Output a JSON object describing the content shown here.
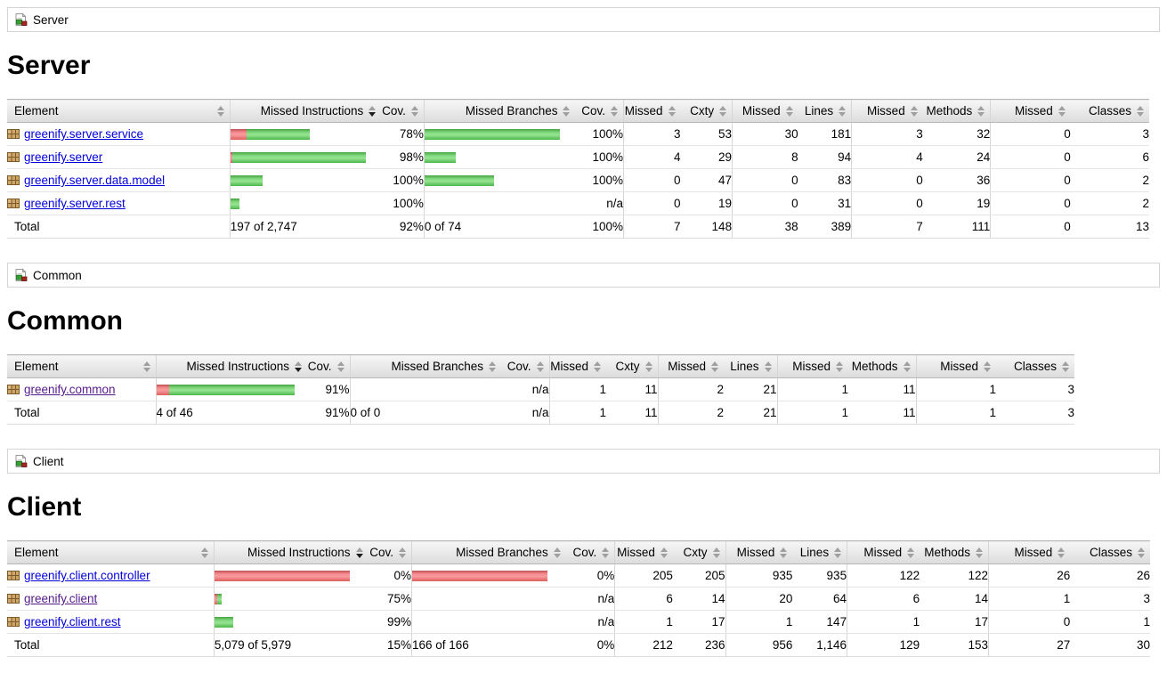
{
  "colors": {
    "bar_green": "#4db74a",
    "bar_red": "#dd5e5c",
    "link": "#0000dd",
    "link_visited": "#551a8b",
    "header_bg": "#e3e3e3"
  },
  "icons": {
    "breadcrumb_icon": "coverage-report-icon",
    "package_icon": "package-icon",
    "sort_icon": "sort-arrows-icon"
  },
  "columns": [
    {
      "key": "element",
      "label": "Element",
      "sorted": false
    },
    {
      "key": "missed-instructions",
      "label": "Missed Instructions",
      "sorted": true
    },
    {
      "key": "instruction-coverage",
      "label": "Cov.",
      "sorted": false
    },
    {
      "key": "missed-branches",
      "label": "Missed Branches",
      "sorted": false
    },
    {
      "key": "branch-coverage",
      "label": "Cov.",
      "sorted": false
    },
    {
      "key": "missed-cxty",
      "label": "Missed",
      "sorted": false
    },
    {
      "key": "cxty",
      "label": "Cxty",
      "sorted": false
    },
    {
      "key": "missed-lines",
      "label": "Missed",
      "sorted": false
    },
    {
      "key": "lines",
      "label": "Lines",
      "sorted": false
    },
    {
      "key": "missed-methods",
      "label": "Missed",
      "sorted": false
    },
    {
      "key": "methods",
      "label": "Methods",
      "sorted": false
    },
    {
      "key": "missed-classes",
      "label": "Missed",
      "sorted": false
    },
    {
      "key": "classes",
      "label": "Classes",
      "sorted": false
    }
  ],
  "sections": [
    {
      "breadcrumb": "Server",
      "title": "Server",
      "rows": [
        {
          "name": "greenify.server.service",
          "visited": false,
          "ibar": {
            "red": 18,
            "green": 71
          },
          "icov": "78%",
          "bbar": {
            "red": 0,
            "green": 152
          },
          "bcov": "100%",
          "vals": [
            "3",
            "53",
            "30",
            "181",
            "3",
            "32",
            "0",
            "3"
          ]
        },
        {
          "name": "greenify.server",
          "visited": false,
          "ibar": {
            "red": 2,
            "green": 150
          },
          "icov": "98%",
          "bbar": {
            "red": 0,
            "green": 35
          },
          "bcov": "100%",
          "vals": [
            "4",
            "29",
            "8",
            "94",
            "4",
            "24",
            "0",
            "6"
          ]
        },
        {
          "name": "greenify.server.data.model",
          "visited": false,
          "ibar": {
            "red": 0,
            "green": 36
          },
          "icov": "100%",
          "bbar": {
            "red": 0,
            "green": 78
          },
          "bcov": "100%",
          "vals": [
            "0",
            "47",
            "0",
            "83",
            "0",
            "36",
            "0",
            "2"
          ]
        },
        {
          "name": "greenify.server.rest",
          "visited": false,
          "ibar": {
            "red": 0,
            "green": 10
          },
          "icov": "100%",
          "bbar": null,
          "bcov": "n/a",
          "vals": [
            "0",
            "19",
            "0",
            "31",
            "0",
            "19",
            "0",
            "2"
          ]
        }
      ],
      "total": {
        "label": "Total",
        "instr": "197 of 2,747",
        "icov": "92%",
        "branch": "0 of 74",
        "bcov": "100%",
        "vals": [
          "7",
          "148",
          "38",
          "389",
          "7",
          "111",
          "0",
          "13"
        ]
      }
    },
    {
      "breadcrumb": "Common",
      "title": "Common",
      "rows": [
        {
          "name": "greenify.common",
          "visited": true,
          "ibar": {
            "red": 14,
            "green": 141
          },
          "icov": "91%",
          "bbar": null,
          "bcov": "n/a",
          "vals": [
            "1",
            "11",
            "2",
            "21",
            "1",
            "11",
            "1",
            "3"
          ]
        }
      ],
      "total": {
        "label": "Total",
        "instr": "4 of 46",
        "icov": "91%",
        "branch": "0 of 0",
        "bcov": "n/a",
        "vals": [
          "1",
          "11",
          "2",
          "21",
          "1",
          "11",
          "1",
          "3"
        ]
      }
    },
    {
      "breadcrumb": "Client",
      "title": "Client",
      "rows": [
        {
          "name": "greenify.client.controller",
          "visited": false,
          "ibar": {
            "red": 152,
            "green": 0
          },
          "icov": "0%",
          "bbar": {
            "red": 152,
            "green": 0
          },
          "bcov": "0%",
          "vals": [
            "205",
            "205",
            "935",
            "935",
            "122",
            "122",
            "26",
            "26"
          ]
        },
        {
          "name": "greenify.client",
          "visited": true,
          "ibar": {
            "red": 3,
            "green": 5
          },
          "icov": "75%",
          "bbar": null,
          "bcov": "n/a",
          "vals": [
            "6",
            "14",
            "20",
            "64",
            "6",
            "14",
            "1",
            "3"
          ]
        },
        {
          "name": "greenify.client.rest",
          "visited": false,
          "ibar": {
            "red": 0,
            "green": 21
          },
          "icov": "99%",
          "bbar": null,
          "bcov": "n/a",
          "vals": [
            "1",
            "17",
            "1",
            "147",
            "1",
            "17",
            "0",
            "1"
          ]
        }
      ],
      "total": {
        "label": "Total",
        "instr": "5,079 of 5,979",
        "icov": "15%",
        "branch": "166 of 166",
        "bcov": "0%",
        "vals": [
          "212",
          "236",
          "956",
          "1,146",
          "129",
          "153",
          "27",
          "30"
        ]
      }
    }
  ]
}
